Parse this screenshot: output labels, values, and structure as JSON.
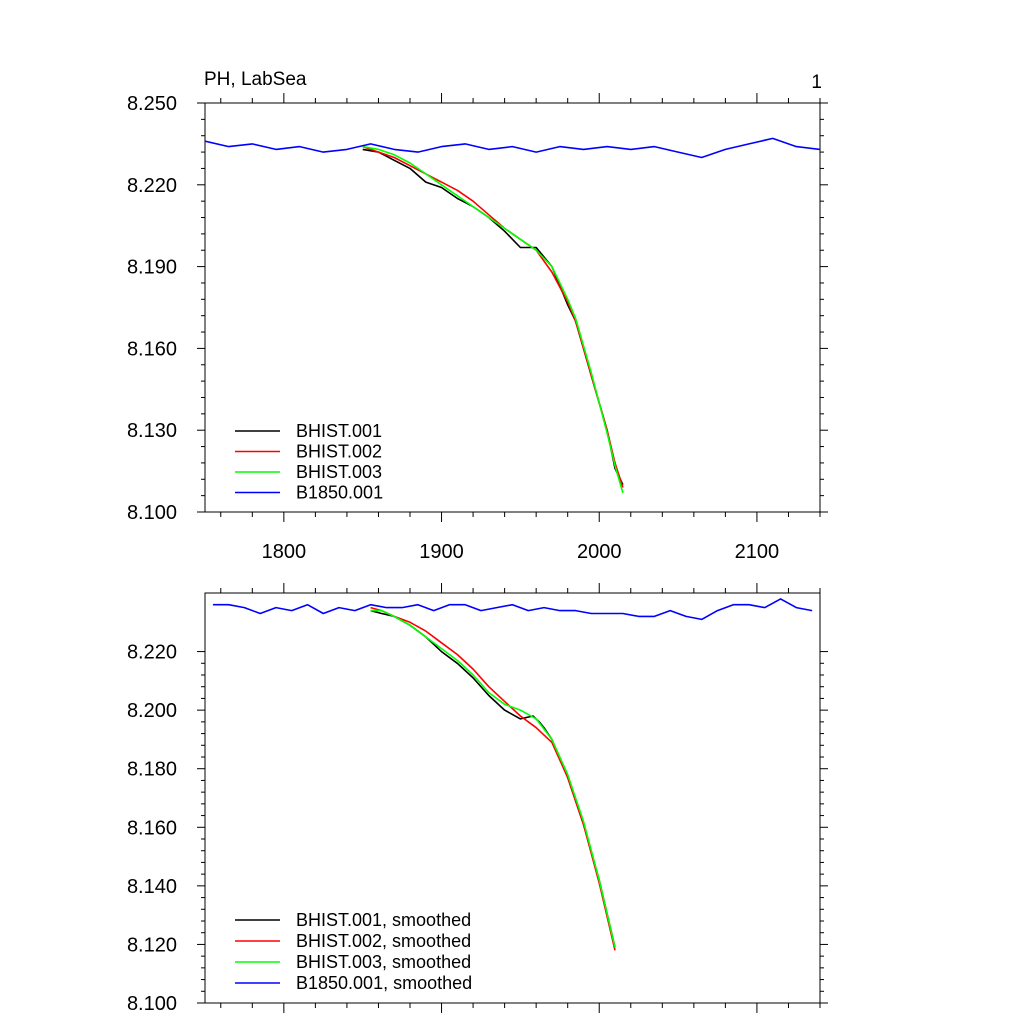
{
  "chart_data": [
    {
      "type": "line",
      "title": "PH, LabSea",
      "corner_label": "1",
      "xlabel": "",
      "ylabel": "",
      "xlim": [
        1750,
        2140
      ],
      "ylim": [
        8.1,
        8.25
      ],
      "x_ticks": [
        1800,
        1900,
        2000,
        2100
      ],
      "x_tick_labels": [
        "1800",
        "1900",
        "2000",
        "2100"
      ],
      "y_ticks": [
        8.1,
        8.13,
        8.16,
        8.19,
        8.22,
        8.25
      ],
      "y_tick_labels": [
        "8.100",
        "8.130",
        "8.160",
        "8.190",
        "8.220",
        "8.250"
      ],
      "legend_position": "bottom-left",
      "series": [
        {
          "name": "BHIST.001",
          "color": "#000000",
          "x": [
            1850,
            1860,
            1870,
            1880,
            1890,
            1900,
            1910,
            1920,
            1930,
            1940,
            1950,
            1960,
            1970,
            1980,
            1985,
            1990,
            1995,
            2000,
            2005,
            2010,
            2015
          ],
          "y": [
            8.233,
            8.232,
            8.229,
            8.226,
            8.221,
            8.219,
            8.215,
            8.212,
            8.208,
            8.203,
            8.197,
            8.197,
            8.19,
            8.176,
            8.17,
            8.16,
            8.15,
            8.14,
            8.13,
            8.116,
            8.11
          ]
        },
        {
          "name": "BHIST.002",
          "color": "#ff0000",
          "x": [
            1850,
            1860,
            1870,
            1880,
            1890,
            1900,
            1910,
            1920,
            1930,
            1940,
            1950,
            1960,
            1970,
            1980,
            1985,
            1990,
            1995,
            2000,
            2005,
            2010,
            2015
          ],
          "y": [
            8.234,
            8.232,
            8.23,
            8.227,
            8.224,
            8.221,
            8.218,
            8.214,
            8.209,
            8.204,
            8.2,
            8.196,
            8.188,
            8.177,
            8.17,
            8.16,
            8.15,
            8.14,
            8.13,
            8.118,
            8.109
          ]
        },
        {
          "name": "BHIST.003",
          "color": "#00ff00",
          "x": [
            1850,
            1860,
            1870,
            1880,
            1890,
            1900,
            1910,
            1920,
            1930,
            1940,
            1950,
            1960,
            1970,
            1980,
            1985,
            1990,
            1995,
            2000,
            2005,
            2010,
            2015
          ],
          "y": [
            8.234,
            8.233,
            8.231,
            8.228,
            8.224,
            8.22,
            8.216,
            8.212,
            8.208,
            8.204,
            8.2,
            8.196,
            8.19,
            8.178,
            8.171,
            8.161,
            8.151,
            8.14,
            8.129,
            8.117,
            8.107
          ]
        },
        {
          "name": "B1850.001",
          "color": "#0000ff",
          "x": [
            1750,
            1765,
            1780,
            1795,
            1810,
            1825,
            1840,
            1855,
            1870,
            1885,
            1900,
            1915,
            1930,
            1945,
            1960,
            1975,
            1990,
            2005,
            2020,
            2035,
            2050,
            2065,
            2080,
            2095,
            2110,
            2125,
            2140
          ],
          "y": [
            8.236,
            8.234,
            8.235,
            8.233,
            8.234,
            8.232,
            8.233,
            8.235,
            8.233,
            8.232,
            8.234,
            8.235,
            8.233,
            8.234,
            8.232,
            8.234,
            8.233,
            8.234,
            8.233,
            8.234,
            8.232,
            8.23,
            8.233,
            8.235,
            8.237,
            8.234,
            8.233
          ]
        }
      ]
    },
    {
      "type": "line",
      "title": "",
      "xlabel": "",
      "ylabel": "",
      "xlim": [
        1750,
        2140
      ],
      "ylim": [
        8.1,
        8.24
      ],
      "x_ticks": [
        1800,
        1900,
        2000,
        2100
      ],
      "x_tick_labels": [],
      "y_ticks": [
        8.1,
        8.12,
        8.14,
        8.16,
        8.18,
        8.2,
        8.22
      ],
      "y_tick_labels": [
        "8.100",
        "8.120",
        "8.140",
        "8.160",
        "8.180",
        "8.200",
        "8.220"
      ],
      "legend_position": "bottom-left",
      "series": [
        {
          "name": "BHIST.001, smoothed",
          "color": "#000000",
          "x": [
            1855,
            1862,
            1870,
            1880,
            1890,
            1900,
            1910,
            1920,
            1930,
            1940,
            1950,
            1958,
            1962,
            1965,
            1970,
            1980,
            1990,
            2000,
            2010
          ],
          "y": [
            8.234,
            8.233,
            8.232,
            8.229,
            8.225,
            8.22,
            8.216,
            8.211,
            8.205,
            8.2,
            8.197,
            8.198,
            8.196,
            8.194,
            8.19,
            8.177,
            8.161,
            8.142,
            8.119
          ]
        },
        {
          "name": "BHIST.002, smoothed",
          "color": "#ff0000",
          "x": [
            1855,
            1862,
            1870,
            1880,
            1890,
            1900,
            1910,
            1920,
            1930,
            1940,
            1950,
            1960,
            1970,
            1980,
            1990,
            2000,
            2010
          ],
          "y": [
            8.235,
            8.234,
            8.232,
            8.23,
            8.227,
            8.223,
            8.219,
            8.214,
            8.208,
            8.203,
            8.198,
            8.194,
            8.189,
            8.177,
            8.161,
            8.141,
            8.118
          ]
        },
        {
          "name": "BHIST.003, smoothed",
          "color": "#00ff00",
          "x": [
            1855,
            1862,
            1870,
            1880,
            1890,
            1900,
            1910,
            1920,
            1930,
            1940,
            1950,
            1960,
            1970,
            1980,
            1990,
            2000,
            2010
          ],
          "y": [
            8.234,
            8.234,
            8.232,
            8.229,
            8.225,
            8.221,
            8.217,
            8.212,
            8.206,
            8.202,
            8.2,
            8.197,
            8.19,
            8.178,
            8.162,
            8.142,
            8.119
          ]
        },
        {
          "name": "B1850.001, smoothed",
          "color": "#0000ff",
          "x": [
            1755,
            1765,
            1775,
            1785,
            1795,
            1805,
            1815,
            1825,
            1835,
            1845,
            1855,
            1865,
            1875,
            1885,
            1895,
            1905,
            1915,
            1925,
            1935,
            1945,
            1955,
            1965,
            1975,
            1985,
            1995,
            2005,
            2015,
            2025,
            2035,
            2045,
            2055,
            2065,
            2075,
            2085,
            2095,
            2105,
            2115,
            2125,
            2135
          ],
          "y": [
            8.236,
            8.236,
            8.235,
            8.233,
            8.235,
            8.234,
            8.236,
            8.233,
            8.235,
            8.234,
            8.236,
            8.235,
            8.235,
            8.236,
            8.234,
            8.236,
            8.236,
            8.234,
            8.235,
            8.236,
            8.234,
            8.235,
            8.234,
            8.234,
            8.233,
            8.233,
            8.233,
            8.232,
            8.232,
            8.234,
            8.232,
            8.231,
            8.234,
            8.236,
            8.236,
            8.235,
            8.238,
            8.235,
            8.234
          ]
        }
      ]
    }
  ]
}
